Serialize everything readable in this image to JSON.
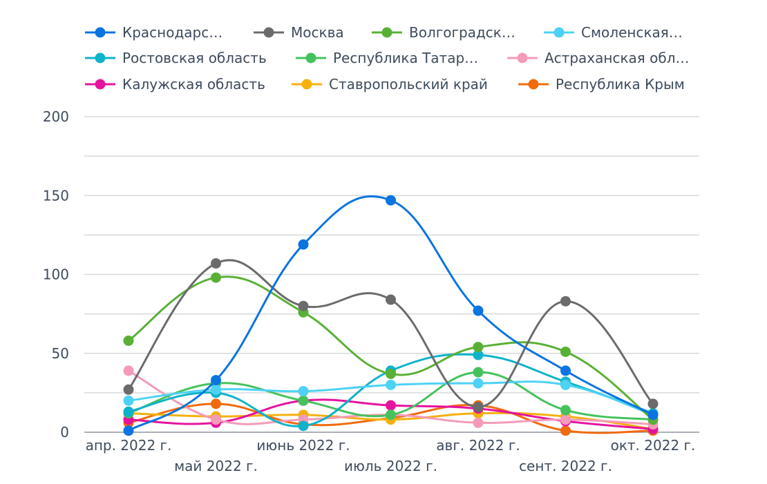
{
  "chart_data": {
    "type": "line",
    "title": "",
    "xlabel": "",
    "ylabel": "",
    "ylim": [
      0,
      200
    ],
    "yticks": [
      0,
      50,
      100,
      150,
      200
    ],
    "grid": true,
    "legend_position": "top",
    "categories": [
      "апр. 2022 г.",
      "май 2022 г.",
      "июнь 2022 г.",
      "июль 2022 г.",
      "авг. 2022 г.",
      "сент. 2022 г.",
      "окт. 2022 г."
    ],
    "series": [
      {
        "name": "Краснодарс…",
        "color": "#0a74e0",
        "values": [
          1,
          33,
          119,
          147,
          77,
          39,
          11
        ]
      },
      {
        "name": "Москва",
        "color": "#6b6b6b",
        "values": [
          27,
          107,
          80,
          84,
          16,
          83,
          18
        ]
      },
      {
        "name": "Волгоградск…",
        "color": "#5ab035",
        "values": [
          58,
          98,
          76,
          37,
          54,
          51,
          8
        ]
      },
      {
        "name": "Смоленская…",
        "color": "#4dd2f5",
        "values": [
          20,
          27,
          26,
          30,
          31,
          30,
          11
        ]
      },
      {
        "name": "Ростовская область",
        "color": "#0fb3c9",
        "values": [
          13,
          25,
          4,
          39,
          49,
          32,
          12
        ]
      },
      {
        "name": "Республика Татар…",
        "color": "#45c25c",
        "values": [
          12,
          31,
          20,
          11,
          38,
          14,
          8
        ]
      },
      {
        "name": "Астраханская обл…",
        "color": "#f59ab8",
        "values": [
          39,
          8,
          8,
          11,
          6,
          8,
          5
        ]
      },
      {
        "name": "Калужская область",
        "color": "#e5139e",
        "values": [
          8,
          6,
          20,
          17,
          15,
          7,
          2
        ]
      },
      {
        "name": "Ставропольский край",
        "color": "#f5b00f",
        "values": [
          12,
          10,
          11,
          8,
          12,
          10,
          2
        ]
      },
      {
        "name": "Республика Крым",
        "color": "#f06a0e",
        "values": [
          6,
          18,
          5,
          9,
          17,
          1,
          1
        ]
      }
    ]
  }
}
